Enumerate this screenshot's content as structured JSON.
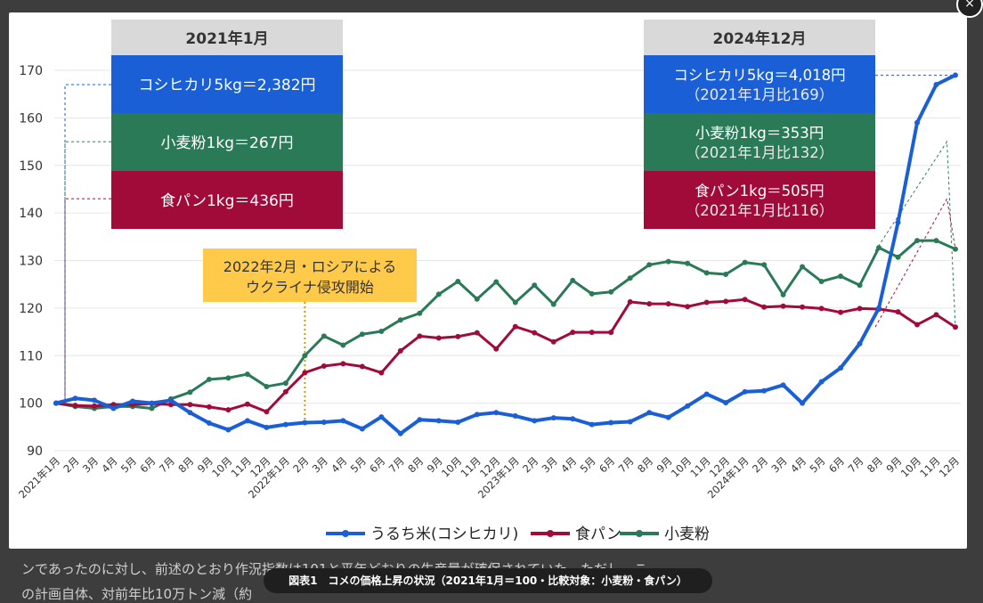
{
  "background_text": {
    "line1": "ンであったのに対し、前述のとおり作況指数は101と平年どおりの生産量が確保されていた。ただし、こ",
    "line2": "の計画自体、対前年比10万トン減（約"
  },
  "caption": "図表1　コメの価格上昇の状況（2021年1月＝100・比較対象：小麦粉・食パン）",
  "close_label": "×",
  "colors": {
    "rice": "#1a5fd6",
    "bread": "#a10b3a",
    "flour": "#2a7a58",
    "box_header": "#d9d9d9",
    "annotation": "#ffc94a",
    "grid": "#e6e6e6"
  },
  "chart_data": {
    "type": "line",
    "ylim": [
      90,
      170
    ],
    "yticks": [
      90,
      100,
      110,
      120,
      130,
      140,
      150,
      160,
      170
    ],
    "categories": [
      "2021年1月",
      "2月",
      "3月",
      "4月",
      "5月",
      "6月",
      "7月",
      "8月",
      "9月",
      "10月",
      "11月",
      "12月",
      "2022年1月",
      "2月",
      "3月",
      "4月",
      "5月",
      "6月",
      "7月",
      "8月",
      "9月",
      "10月",
      "11月",
      "12月",
      "2023年1月",
      "2月",
      "3月",
      "4月",
      "5月",
      "6月",
      "7月",
      "8月",
      "9月",
      "10月",
      "11月",
      "12月",
      "2024年1月",
      "2月",
      "3月",
      "4月",
      "5月",
      "6月",
      "7月",
      "8月",
      "9月",
      "10月",
      "11月",
      "12月"
    ],
    "series": [
      {
        "name": "うるち米(コシヒカリ)",
        "color": "#1a5fd6",
        "values": [
          100,
          101,
          100.6,
          98.9,
          100.4,
          100,
          100.6,
          98,
          95.8,
          94.4,
          96.3,
          94.9,
          95.5,
          95.9,
          96,
          96.3,
          94.6,
          97.1,
          93.6,
          96.5,
          96.3,
          96,
          97.6,
          98,
          97.3,
          96.3,
          96.9,
          96.7,
          95.5,
          95.9,
          96.1,
          98,
          97,
          99.4,
          101.9,
          100.1,
          102.4,
          102.6,
          103.8,
          100,
          104.5,
          107.4,
          112.5,
          120,
          138,
          159,
          167,
          169
        ]
      },
      {
        "name": "食パン",
        "color": "#a10b3a",
        "values": [
          100,
          99.5,
          99.4,
          99.7,
          99.7,
          99.9,
          99.7,
          99.7,
          99.2,
          98.6,
          99.8,
          98.2,
          102.4,
          106.4,
          107.8,
          108.3,
          107.7,
          106.4,
          111,
          114.1,
          113.7,
          114,
          114.8,
          111.4,
          116.1,
          114.8,
          112.9,
          114.9,
          114.9,
          114.9,
          121.3,
          120.9,
          120.9,
          120.3,
          121.2,
          121.4,
          121.8,
          120.2,
          120.4,
          120.2,
          119.9,
          119.1,
          119.9,
          119.8,
          119.2,
          116.5,
          118.6,
          116
        ]
      },
      {
        "name": "小麦粉",
        "color": "#2a7a58",
        "values": [
          100,
          99.3,
          98.9,
          99.3,
          99.3,
          98.9,
          100.9,
          102.3,
          105,
          105.3,
          106.1,
          103.5,
          104.2,
          110,
          114.1,
          112.2,
          114.5,
          115.1,
          117.5,
          118.9,
          122.9,
          125.6,
          121.9,
          125.5,
          121.2,
          124.8,
          120.8,
          125.8,
          123,
          123.4,
          126.3,
          129.1,
          129.8,
          129.4,
          127.4,
          127.1,
          129.6,
          129.1,
          122.8,
          128.7,
          125.6,
          126.7,
          124.8,
          132.7,
          130.7,
          134.2,
          134.2,
          132.4
        ]
      }
    ],
    "legend": {
      "placement": "bottom"
    },
    "boxes": {
      "left": {
        "header": "2021年1月",
        "rows": [
          {
            "line1": "コシヒカリ5kg＝2,382円",
            "line2": "",
            "value": 167
          },
          {
            "line1": "小麦粉1kg＝267円",
            "line2": "",
            "value": 155
          },
          {
            "line1": "食パン1kg＝436円",
            "line2": "",
            "value": 143
          }
        ]
      },
      "right": {
        "header": "2024年12月",
        "rows": [
          {
            "line1": "コシヒカリ5kg＝4,018円",
            "line2": "（2021年1月比169）",
            "value": 169
          },
          {
            "line1": "小麦粉1kg＝353円",
            "line2": "（2021年1月比132）",
            "value": 132
          },
          {
            "line1": "食パン1kg＝505円",
            "line2": "（2021年1月比116）",
            "value": 116
          }
        ]
      }
    },
    "annotation": {
      "line1": "2022年2月・ロシアによる",
      "line2": "ウクライナ侵攻開始",
      "category_index": 13
    }
  }
}
